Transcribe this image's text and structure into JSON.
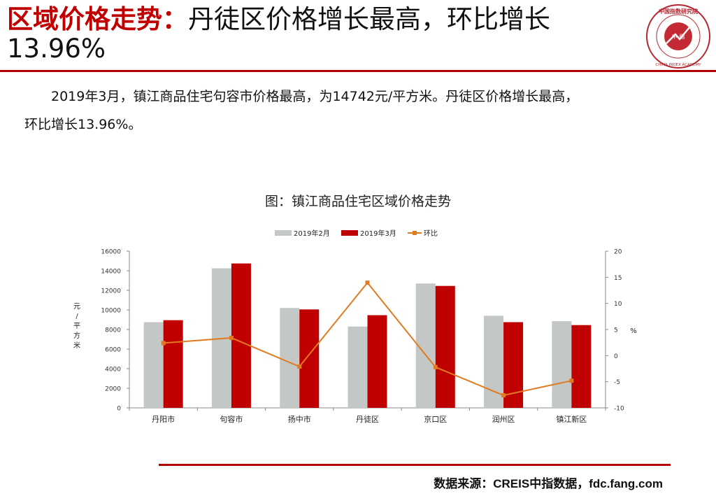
{
  "header": {
    "title_lead": "区域价格走势：",
    "title_rest": "丹徒区价格增长最高，环比增长",
    "title_line2": "13.96%"
  },
  "logo": {
    "icon": "china-index-academy-seal",
    "top_text": "中 国 指 数 研 究 院",
    "center_text": "中 指",
    "bottom_text": "CHINA INDEX ACADEMY"
  },
  "paragraph": {
    "line1": "2019年3月，镇江商品住宅句容市价格最高，为14742元/平方米。丹徒区价格增长最高，",
    "line2": "环比增长13.96%。"
  },
  "chart_title": "图：镇江商品住宅区域价格走势",
  "chart_data": {
    "type": "bar",
    "categories": [
      "丹阳市",
      "句容市",
      "扬中市",
      "丹徒区",
      "京口区",
      "润州区",
      "镇江新区"
    ],
    "series": [
      {
        "name": "2019年2月",
        "kind": "bar",
        "color": "#c3c8c6",
        "axis": "left",
        "values": [
          8750,
          14250,
          10200,
          8300,
          12700,
          9400,
          8850
        ]
      },
      {
        "name": "2019年3月",
        "kind": "bar",
        "color": "#c00000",
        "axis": "left",
        "values": [
          8950,
          14742,
          10050,
          9460,
          12450,
          8750,
          8450
        ]
      },
      {
        "name": "环比",
        "kind": "line",
        "color": "#e07b22",
        "axis": "right",
        "values": [
          2.4,
          3.4,
          -2.1,
          13.96,
          -2.2,
          -7.6,
          -4.8
        ]
      }
    ],
    "ylabel": "元/平方米",
    "ylabel_right": "%",
    "ylim": [
      0,
      16000
    ],
    "y_ticks": [
      "0",
      "2000",
      "4000",
      "6000",
      "8000",
      "10000",
      "12000",
      "14000",
      "16000"
    ],
    "ylim_right": [
      -10,
      20
    ],
    "y2_ticks": [
      "-10",
      "-5",
      "0",
      "5",
      "10",
      "15",
      "20"
    ],
    "legend_position": "top-center",
    "grid": false
  },
  "source": "数据来源：CREIS中指数据，fdc.fang.com",
  "colors": {
    "accent": "#c00000",
    "rule": "#b00000",
    "bar_gray": "#c3c8c6",
    "line_orange": "#e07b22"
  }
}
